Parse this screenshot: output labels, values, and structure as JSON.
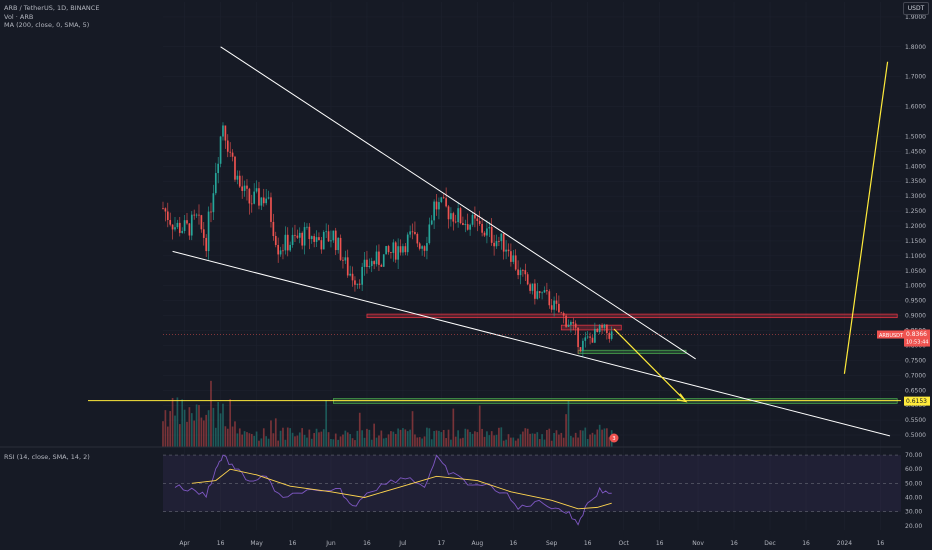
{
  "header": {
    "title": "ARB / TetherUS, 1D, BINANCE",
    "vol": "Vol · ARB",
    "ma": "MA (200, close, 0, SMA, 5)",
    "rsi": "RSI (14, close, SMA, 14, 2)"
  },
  "axis": {
    "currency": "USDT"
  },
  "price_axis": {
    "ticks": [
      "1.9000",
      "1.8000",
      "1.7000",
      "1.6000",
      "1.5000",
      "1.4500",
      "1.4000",
      "1.3500",
      "1.3000",
      "1.2500",
      "1.2000",
      "1.1500",
      "1.1000",
      "1.0500",
      "1.0000",
      "0.9500",
      "0.9000",
      "0.8500",
      "0.8000",
      "0.7500",
      "0.7000",
      "0.6500",
      "0.6000",
      "0.5500",
      "0.5000"
    ]
  },
  "rsi_axis": {
    "ticks": [
      "70.00",
      "60.00",
      "50.00",
      "40.00",
      "30.00",
      "20.00"
    ]
  },
  "x_axis": {
    "ticks": [
      "Apr",
      "16",
      "May",
      "16",
      "Jun",
      "16",
      "Jul",
      "17",
      "Aug",
      "16",
      "Sep",
      "16",
      "Oct",
      "16",
      "Nov",
      "16",
      "Dec",
      "16",
      "2024",
      "16"
    ]
  },
  "labels": {
    "symbol_tag": "ARBUSDT",
    "last_price": "0.8366",
    "countdown": "10:53:44",
    "level_tag": "0.6153",
    "alert_badge": "3"
  },
  "colors": {
    "up": "#26a69a",
    "down": "#ef5350",
    "trendline": "#ffffff",
    "projection": "#ffeb3b",
    "resistance_zone": "#f23645",
    "support_zone": "#4caf50",
    "rsi_line": "#7e57c2",
    "rsi_ma": "#ffd54f"
  },
  "chart_data": {
    "type": "candlestick",
    "title": "ARB / TetherUS, 1D, BINANCE",
    "price_range": [
      0.46,
      1.95
    ],
    "date_range": [
      "2023-03-23",
      "2024-01-20"
    ],
    "current_price": 0.8366,
    "horizontal_level": 0.6153,
    "close_path": [
      [
        "2023-03-23",
        1.26
      ],
      [
        "2023-03-28",
        1.2
      ],
      [
        "2023-04-02",
        1.19
      ],
      [
        "2023-04-06",
        1.22
      ],
      [
        "2023-04-10",
        1.15
      ],
      [
        "2023-04-14",
        1.4
      ],
      [
        "2023-04-17",
        1.55
      ],
      [
        "2023-04-20",
        1.45
      ],
      [
        "2023-04-24",
        1.33
      ],
      [
        "2023-04-28",
        1.28
      ],
      [
        "2023-05-05",
        1.3
      ],
      [
        "2023-05-10",
        1.13
      ],
      [
        "2023-05-16",
        1.15
      ],
      [
        "2023-05-22",
        1.17
      ],
      [
        "2023-05-28",
        1.15
      ],
      [
        "2023-06-02",
        1.17
      ],
      [
        "2023-06-08",
        1.05
      ],
      [
        "2023-06-12",
        1.02
      ],
      [
        "2023-06-16",
        1.07
      ],
      [
        "2023-06-22",
        1.09
      ],
      [
        "2023-06-28",
        1.12
      ],
      [
        "2023-07-04",
        1.16
      ],
      [
        "2023-07-10",
        1.14
      ],
      [
        "2023-07-14",
        1.27
      ],
      [
        "2023-07-20",
        1.25
      ],
      [
        "2023-07-26",
        1.22
      ],
      [
        "2023-08-01",
        1.2
      ],
      [
        "2023-08-08",
        1.16
      ],
      [
        "2023-08-14",
        1.13
      ],
      [
        "2023-08-18",
        1.05
      ],
      [
        "2023-08-24",
        0.98
      ],
      [
        "2023-08-30",
        0.96
      ],
      [
        "2023-09-05",
        0.9
      ],
      [
        "2023-09-09",
        0.87
      ],
      [
        "2023-09-13",
        0.8
      ],
      [
        "2023-09-18",
        0.83
      ],
      [
        "2023-09-22",
        0.85
      ],
      [
        "2023-09-26",
        0.8366
      ]
    ],
    "volume_profile_note": "daily volume bars beneath price",
    "trendlines": [
      {
        "name": "upper",
        "from": [
          "2023-04-16",
          1.8
        ],
        "to": [
          "2023-10-31",
          0.755
        ]
      },
      {
        "name": "lower",
        "from": [
          "2023-03-27",
          1.115
        ],
        "to": [
          "2024-01-20",
          0.497
        ]
      }
    ],
    "projections": [
      {
        "from": [
          "2023-09-27",
          0.855
        ],
        "to": [
          "2023-10-27",
          0.612
        ]
      },
      {
        "from": [
          "2024-01-01",
          0.705
        ],
        "to": [
          "2024-01-19",
          1.75
        ]
      }
    ],
    "zones": [
      {
        "type": "resistance",
        "from": "2023-06-16",
        "to": "2024-01-23",
        "low": 0.893,
        "high": 0.905
      },
      {
        "type": "resistance",
        "from": "2023-09-05",
        "to": "2023-09-30",
        "low": 0.852,
        "high": 0.868
      },
      {
        "type": "support",
        "from": "2023-09-12",
        "to": "2023-10-27",
        "low": 0.773,
        "high": 0.784
      },
      {
        "type": "support",
        "from": "2023-06-02",
        "to": "2024-01-23",
        "low": 0.606,
        "high": 0.622
      }
    ],
    "rsi": {
      "range": [
        17,
        75
      ],
      "upper_band": 70,
      "lower_band": 30,
      "values": [
        [
          "2023-03-28",
          48
        ],
        [
          "2023-04-04",
          45
        ],
        [
          "2023-04-10",
          42
        ],
        [
          "2023-04-14",
          60
        ],
        [
          "2023-04-17",
          70
        ],
        [
          "2023-04-22",
          60
        ],
        [
          "2023-04-28",
          52
        ],
        [
          "2023-05-05",
          54
        ],
        [
          "2023-05-12",
          38
        ],
        [
          "2023-05-20",
          45
        ],
        [
          "2023-05-28",
          43
        ],
        [
          "2023-06-05",
          45
        ],
        [
          "2023-06-10",
          33
        ],
        [
          "2023-06-16",
          44
        ],
        [
          "2023-06-24",
          50
        ],
        [
          "2023-07-02",
          55
        ],
        [
          "2023-07-10",
          48
        ],
        [
          "2023-07-15",
          68
        ],
        [
          "2023-07-20",
          58
        ],
        [
          "2023-07-28",
          50
        ],
        [
          "2023-08-05",
          48
        ],
        [
          "2023-08-12",
          44
        ],
        [
          "2023-08-18",
          32
        ],
        [
          "2023-08-25",
          37
        ],
        [
          "2023-09-01",
          34
        ],
        [
          "2023-09-07",
          30
        ],
        [
          "2023-09-12",
          22
        ],
        [
          "2023-09-16",
          36
        ],
        [
          "2023-09-21",
          45
        ],
        [
          "2023-09-26",
          43
        ]
      ],
      "ma": [
        [
          "2023-04-04",
          50
        ],
        [
          "2023-04-14",
          52
        ],
        [
          "2023-04-20",
          60
        ],
        [
          "2023-05-01",
          56
        ],
        [
          "2023-05-15",
          48
        ],
        [
          "2023-06-01",
          44
        ],
        [
          "2023-06-15",
          40
        ],
        [
          "2023-07-01",
          48
        ],
        [
          "2023-07-15",
          55
        ],
        [
          "2023-08-01",
          52
        ],
        [
          "2023-08-15",
          44
        ],
        [
          "2023-09-01",
          38
        ],
        [
          "2023-09-12",
          32
        ],
        [
          "2023-09-20",
          33
        ],
        [
          "2023-09-26",
          36
        ]
      ]
    }
  }
}
